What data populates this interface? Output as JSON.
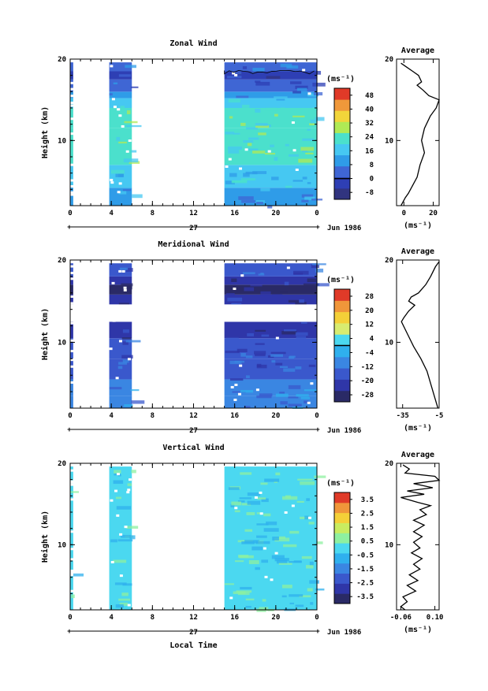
{
  "chart_data": [
    {
      "type": "heatmap",
      "title": "Zonal Wind",
      "ylabel": "Height (km)",
      "ylim": [
        2,
        20
      ],
      "yticks": [
        "10",
        "20"
      ],
      "xticks": [
        "0",
        "4",
        "8",
        "12",
        "16",
        "20",
        "0"
      ],
      "xlim": [
        0,
        24
      ],
      "day_label": "27",
      "date_label": "Jun 1986",
      "data_segments_hours": [
        [
          0,
          0.3
        ],
        [
          3.8,
          6
        ],
        [
          15,
          24
        ]
      ],
      "colorbar": {
        "unit": "(ms⁻¹)",
        "labels": [
          "48",
          "40",
          "32",
          "24",
          "16",
          "8",
          "0",
          "-8"
        ],
        "range": [
          -12,
          52
        ],
        "zero_line": 0
      },
      "average_profile": {
        "title": "Average",
        "xlabel": "(ms⁻¹)",
        "xticks": [
          "0",
          "20"
        ],
        "xlim": [
          -5,
          24
        ],
        "yticks": [
          "10",
          "20"
        ],
        "ylim": [
          2,
          20
        ],
        "points": [
          [
            -2,
            19.5
          ],
          [
            2,
            19
          ],
          [
            6,
            18.5
          ],
          [
            10,
            18
          ],
          [
            12,
            17.2
          ],
          [
            9,
            16.8
          ],
          [
            13,
            16.2
          ],
          [
            17,
            15.5
          ],
          [
            24,
            15
          ],
          [
            22,
            14
          ],
          [
            18,
            13
          ],
          [
            14,
            11.5
          ],
          [
            12,
            10
          ],
          [
            14,
            8.5
          ],
          [
            11,
            7
          ],
          [
            9,
            5.5
          ],
          [
            6,
            4.5
          ],
          [
            3,
            3.5
          ],
          [
            1,
            3
          ],
          [
            -2,
            2
          ]
        ]
      },
      "colors": [
        "#31347f",
        "#2e3fb4",
        "#3f66d4",
        "#2f9ce8",
        "#46c8f2",
        "#4be0cc",
        "#b0ea55",
        "#f2d53a",
        "#f0983a",
        "#e03a28"
      ],
      "bands": [
        {
          "h": [
            2,
            4.2
          ],
          "c": 3
        },
        {
          "h": [
            4.2,
            7
          ],
          "c": 4
        },
        {
          "h": [
            7,
            9.5
          ],
          "c": 5
        },
        {
          "h": [
            9.5,
            11.5
          ],
          "c": 5
        },
        {
          "h": [
            11.5,
            14
          ],
          "c": 5
        },
        {
          "h": [
            14,
            15.2
          ],
          "c": 4
        },
        {
          "h": [
            15.2,
            16
          ],
          "c": 3
        },
        {
          "h": [
            16,
            17.5
          ],
          "c": 2
        },
        {
          "h": [
            17.5,
            18.5
          ],
          "c": 1
        },
        {
          "h": [
            18.5,
            19.6
          ],
          "c": 2
        }
      ]
    },
    {
      "type": "heatmap",
      "title": "Meridional Wind",
      "ylabel": "Height (km)",
      "ylim": [
        2,
        20
      ],
      "yticks": [
        "10",
        "20"
      ],
      "xticks": [
        "0",
        "4",
        "8",
        "12",
        "16",
        "20",
        "0"
      ],
      "xlim": [
        0,
        24
      ],
      "day_label": "27",
      "date_label": "Jun 1986",
      "data_segments_hours": [
        [
          0,
          0.3
        ],
        [
          3.8,
          6
        ],
        [
          15,
          24
        ]
      ],
      "colorbar": {
        "unit": "(ms⁻¹)",
        "labels": [
          "28",
          "20",
          "12",
          "4",
          "-4",
          "-12",
          "-20",
          "-28"
        ],
        "range": [
          -32,
          32
        ],
        "zero_line": 0
      },
      "average_profile": {
        "title": "Average",
        "xlabel": "(ms⁻¹)",
        "xticks": [
          "-35",
          "-5"
        ],
        "xlim": [
          -40,
          -5
        ],
        "yticks": [
          "10",
          "20"
        ],
        "ylim": [
          2,
          20
        ],
        "points": [
          [
            -5,
            19.8
          ],
          [
            -8,
            19.2
          ],
          [
            -12,
            18
          ],
          [
            -16,
            17
          ],
          [
            -22,
            16
          ],
          [
            -28,
            15.5
          ],
          [
            -30,
            15
          ],
          [
            -25,
            14.5
          ],
          [
            -30,
            13.8
          ],
          [
            -34,
            13
          ],
          [
            -36,
            12.5
          ],
          [
            -31,
            11
          ],
          [
            -26,
            9.5
          ],
          [
            -20,
            8
          ],
          [
            -15,
            6.5
          ],
          [
            -12,
            5
          ],
          [
            -9,
            3.5
          ],
          [
            -7,
            2.5
          ],
          [
            -6,
            2
          ]
        ]
      },
      "colors": [
        "#2a2a66",
        "#2f36a8",
        "#3a58cc",
        "#3a86e2",
        "#2fb0ee",
        "#4bd8f0",
        "#d8ec70",
        "#f4d038",
        "#f0963a",
        "#e03a28"
      ],
      "gap_heights": [
        12.5,
        14.6
      ],
      "bands": [
        {
          "h": [
            2,
            3.5
          ],
          "c": 3
        },
        {
          "h": [
            3.5,
            5.5
          ],
          "c": 3
        },
        {
          "h": [
            5.5,
            8
          ],
          "c": 2
        },
        {
          "h": [
            8,
            10.5
          ],
          "c": 2
        },
        {
          "h": [
            10.5,
            12.5
          ],
          "c": 1
        },
        {
          "h": [
            14.6,
            15.8
          ],
          "c": 1
        },
        {
          "h": [
            15.8,
            17
          ],
          "c": 0
        },
        {
          "h": [
            17,
            18
          ],
          "c": 1
        },
        {
          "h": [
            18,
            19.6
          ],
          "c": 2
        }
      ]
    },
    {
      "type": "heatmap",
      "title": "Vertical Wind",
      "ylabel": "Height (km)",
      "xlabel": "Local Time",
      "ylim": [
        2,
        20
      ],
      "yticks": [
        "10",
        "20"
      ],
      "xticks": [
        "0",
        "4",
        "8",
        "12",
        "16",
        "20",
        "0"
      ],
      "xlim": [
        0,
        24
      ],
      "day_label": "27",
      "date_label": "Jun 1986",
      "data_segments_hours": [
        [
          0,
          0.3
        ],
        [
          3.8,
          6
        ],
        [
          15,
          24
        ]
      ],
      "colorbar": {
        "unit": "(ms⁻¹)",
        "labels": [
          "3.5",
          "2.5",
          "1.5",
          "0.5",
          "-0.5",
          "-1.5",
          "-2.5",
          "-3.5"
        ],
        "range": [
          -4,
          4
        ],
        "zero_line": null
      },
      "average_profile": {
        "title": "Average",
        "xlabel": "(ms⁻¹)",
        "xticks": [
          "-0.06",
          "0.10"
        ],
        "xlim": [
          -0.08,
          0.12
        ],
        "yticks": [
          "10",
          "20"
        ],
        "ylim": [
          2,
          20
        ],
        "points": [
          [
            -0.05,
            19.8
          ],
          [
            -0.02,
            19.3
          ],
          [
            -0.04,
            18.8
          ],
          [
            0.1,
            18.4
          ],
          [
            0.12,
            17.9
          ],
          [
            0.0,
            17.5
          ],
          [
            0.09,
            17
          ],
          [
            -0.03,
            16.6
          ],
          [
            0.05,
            16.2
          ],
          [
            -0.06,
            15.8
          ],
          [
            0.02,
            15.2
          ],
          [
            0.08,
            14.8
          ],
          [
            0.03,
            14.3
          ],
          [
            0.06,
            13.7
          ],
          [
            0.0,
            13
          ],
          [
            0.05,
            12.4
          ],
          [
            0.0,
            11.6
          ],
          [
            0.04,
            11
          ],
          [
            0.0,
            10.3
          ],
          [
            0.03,
            9.6
          ],
          [
            -0.01,
            9
          ],
          [
            0.04,
            8.3
          ],
          [
            0.0,
            7.6
          ],
          [
            0.03,
            7
          ],
          [
            -0.02,
            6.3
          ],
          [
            0.02,
            5.6
          ],
          [
            -0.03,
            5
          ],
          [
            0.01,
            4.3
          ],
          [
            -0.05,
            3.6
          ],
          [
            -0.03,
            3
          ],
          [
            -0.06,
            2.4
          ],
          [
            -0.04,
            2
          ]
        ]
      },
      "colors": [
        "#2a2a66",
        "#2f36a8",
        "#3a58cc",
        "#3a86e2",
        "#2fb0ee",
        "#4bd8f0",
        "#8ef0a0",
        "#c9ec60",
        "#f4d038",
        "#f0963a",
        "#e03a28"
      ],
      "bands": [
        {
          "h": [
            2,
            20
          ],
          "c": 5
        }
      ]
    }
  ]
}
